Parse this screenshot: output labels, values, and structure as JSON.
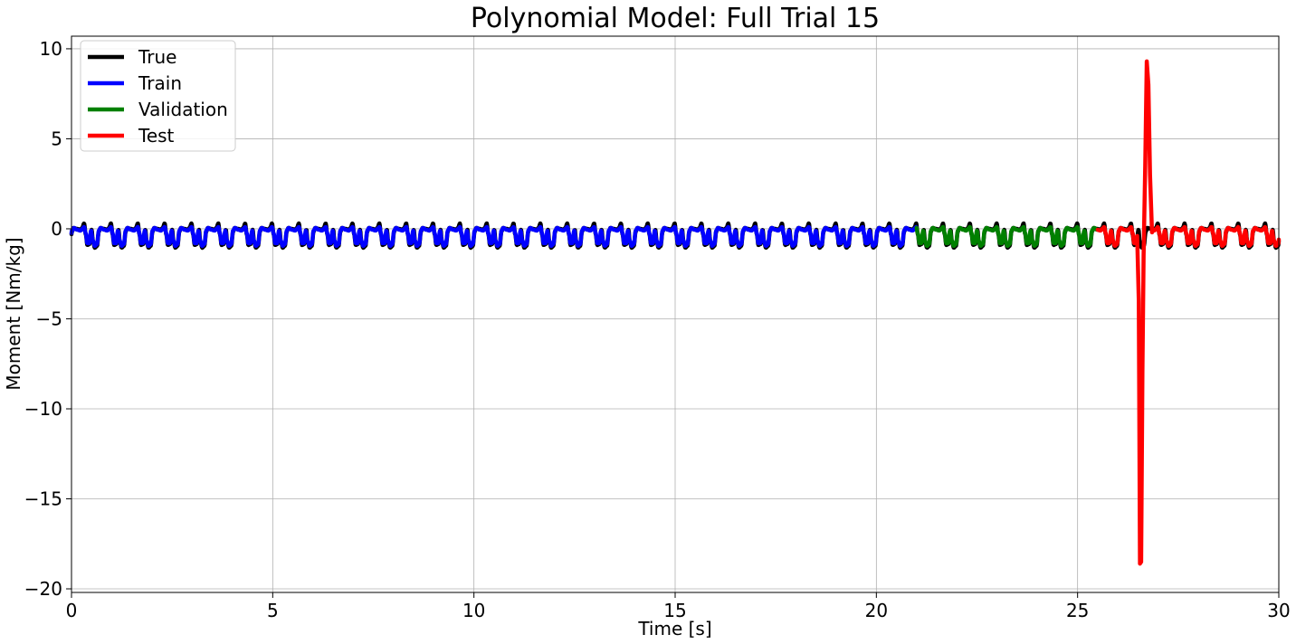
{
  "chart_data": {
    "type": "line",
    "title": "Polynomial Model: Full Trial 15",
    "xlabel": "Time [s]",
    "ylabel": "Moment [Nm/kg]",
    "xlim": [
      0,
      30
    ],
    "ylim": [
      -20.2,
      10.7
    ],
    "xticks": [
      0,
      5,
      10,
      15,
      20,
      25,
      30
    ],
    "xtick_labels": [
      "0",
      "5",
      "10",
      "15",
      "20",
      "25",
      "30"
    ],
    "yticks": [
      10,
      5,
      0,
      -5,
      -10,
      -15,
      -20
    ],
    "ytick_labels": [
      "10",
      "5",
      "0",
      "−5",
      "−10",
      "−15",
      "−20"
    ],
    "grid": true,
    "legend_position": "upper-left",
    "gait_period_s": 0.667,
    "series": [
      {
        "name": "True",
        "color": "#000000",
        "x_range": [
          0,
          30
        ],
        "pattern": "periodic",
        "min": -1.1,
        "max": 0.3
      },
      {
        "name": "Train",
        "color": "#0000ff",
        "x_range": [
          0,
          21
        ],
        "pattern": "periodic",
        "min": -0.95,
        "max": 0.1
      },
      {
        "name": "Validation",
        "color": "#008000",
        "x_range": [
          21,
          25.5
        ],
        "pattern": "periodic",
        "min": -0.95,
        "max": 0.1
      },
      {
        "name": "Test",
        "color": "#ff0000",
        "x_range": [
          25.5,
          30
        ],
        "pattern": "periodic",
        "min": -0.95,
        "max": 0.1,
        "spike": [
          [
            26.48,
            -0.4
          ],
          [
            26.52,
            -4.0
          ],
          [
            26.55,
            -18.6
          ],
          [
            26.58,
            -18.5
          ],
          [
            26.61,
            -8.0
          ],
          [
            26.64,
            -1.5
          ],
          [
            26.68,
            3.5
          ],
          [
            26.72,
            9.3
          ],
          [
            26.76,
            8.0
          ],
          [
            26.8,
            3.0
          ],
          [
            26.85,
            -0.2
          ]
        ]
      }
    ]
  }
}
